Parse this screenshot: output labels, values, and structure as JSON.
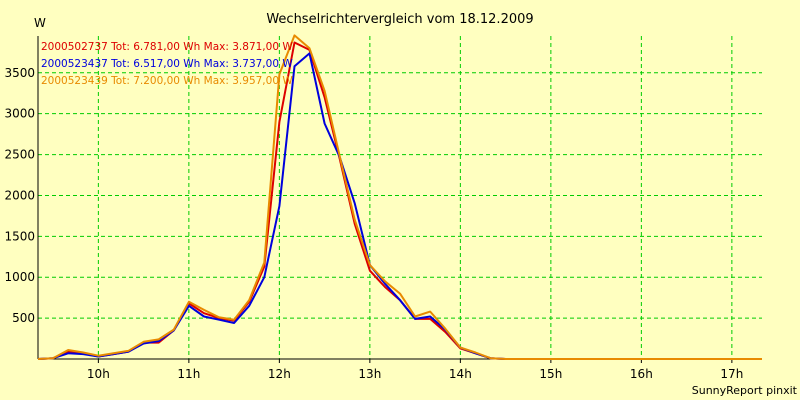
{
  "chart_data": {
    "type": "line",
    "title": "Wechselrichtervergleich vom 18.12.2009",
    "ylabel": "W",
    "xlabel": "",
    "footer": "SunnyReport pinxit",
    "ylim": [
      0,
      3950
    ],
    "xlim": [
      9.333,
      17.333
    ],
    "yticks": [
      500,
      1000,
      1500,
      2000,
      2500,
      3000,
      3500
    ],
    "xticks": [
      {
        "value": 10,
        "label": "10h"
      },
      {
        "value": 11,
        "label": "11h"
      },
      {
        "value": 12,
        "label": "12h"
      },
      {
        "value": 13,
        "label": "13h"
      },
      {
        "value": 14,
        "label": "14h"
      },
      {
        "value": 15,
        "label": "15h"
      },
      {
        "value": 16,
        "label": "16h"
      },
      {
        "value": 17,
        "label": "17h"
      }
    ],
    "grid": true,
    "legend_position": "top-left",
    "colors": {
      "background": "#ffffc0",
      "grid": "#00cc00",
      "axis": "#000000"
    },
    "x": [
      9.333,
      9.5,
      9.667,
      9.833,
      10.0,
      10.167,
      10.333,
      10.5,
      10.667,
      10.833,
      11.0,
      11.167,
      11.333,
      11.5,
      11.667,
      11.833,
      12.0,
      12.167,
      12.333,
      12.5,
      12.667,
      12.833,
      13.0,
      13.167,
      13.333,
      13.5,
      13.667,
      13.833,
      14.0,
      14.167,
      14.333,
      14.5,
      14.667,
      14.833,
      15.0,
      15.167,
      15.333,
      15.5,
      15.667,
      15.833,
      16.0,
      16.167,
      16.333,
      16.5,
      16.667,
      16.833,
      17.0,
      17.167,
      17.333
    ],
    "series": [
      {
        "name": "2000502737",
        "legend": "2000502737 Tot: 6.781,00 Wh Max: 3.871,00 W",
        "color": "#dd0000",
        "values": [
          0,
          10,
          90,
          70,
          30,
          60,
          90,
          200,
          200,
          350,
          680,
          560,
          500,
          470,
          700,
          1130,
          2900,
          3871,
          3780,
          3200,
          2450,
          1650,
          1080,
          880,
          720,
          490,
          490,
          330,
          130,
          70,
          10,
          0,
          0,
          0,
          0,
          0,
          0,
          0,
          0,
          0,
          0,
          0,
          0,
          0,
          0,
          0,
          0,
          0,
          0
        ]
      },
      {
        "name": "2000523437",
        "legend": "2000523437 Tot: 6.517,00 Wh Max: 3.737,00 W",
        "color": "#0000dd",
        "values": [
          0,
          10,
          70,
          60,
          30,
          60,
          90,
          190,
          220,
          350,
          650,
          520,
          480,
          440,
          650,
          1000,
          1870,
          3580,
          3737,
          2880,
          2470,
          1900,
          1150,
          920,
          720,
          490,
          520,
          360,
          140,
          70,
          10,
          0,
          0,
          0,
          0,
          0,
          0,
          0,
          0,
          0,
          0,
          0,
          0,
          0,
          0,
          0,
          0,
          0,
          0
        ]
      },
      {
        "name": "2000523439",
        "legend": "2000523439 Tot: 7.200,00 Wh Max: 3.957,00 W",
        "color": "#e88a00",
        "values": [
          0,
          10,
          110,
          80,
          40,
          70,
          100,
          210,
          240,
          360,
          700,
          600,
          510,
          480,
          720,
          1180,
          3480,
          3957,
          3800,
          3280,
          2480,
          1700,
          1150,
          950,
          800,
          520,
          580,
          370,
          140,
          80,
          10,
          0,
          0,
          0,
          0,
          0,
          0,
          0,
          0,
          0,
          0,
          0,
          0,
          0,
          0,
          0,
          0,
          0,
          0
        ]
      }
    ]
  }
}
